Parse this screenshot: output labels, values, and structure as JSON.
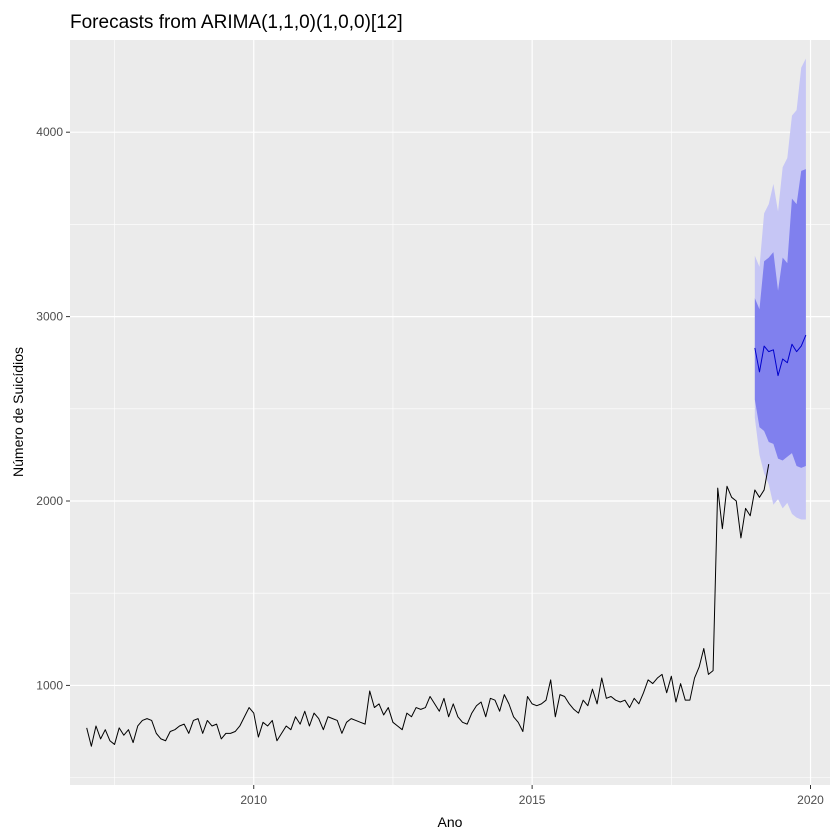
{
  "chart_data": {
    "type": "line",
    "title": "Forecasts from ARIMA(1,1,0)(1,0,0)[12]",
    "xlabel": "Ano",
    "ylabel": "Número de Suicídios",
    "xlim": [
      2006.7,
      2020.35
    ],
    "ylim": [
      460,
      4500
    ],
    "x_ticks": [
      2010,
      2015,
      2020
    ],
    "x_tick_labels": [
      "2010",
      "2015",
      "2020"
    ],
    "y_ticks": [
      1000,
      2000,
      3000,
      4000
    ],
    "y_tick_labels": [
      "1000",
      "2000",
      "3000",
      "4000"
    ],
    "grid": true,
    "legend": "none",
    "colors": {
      "panel": "#ebebeb",
      "grid_major": "#ffffff",
      "history_line": "#000000",
      "forecast_line": "#0000cc",
      "band_95": "#c6c6f5",
      "band_80": "#8080ee"
    },
    "series": [
      {
        "kind": "history",
        "start": [
          2007,
          1
        ],
        "frequency": 12,
        "values": [
          770,
          670,
          780,
          710,
          760,
          700,
          680,
          770,
          730,
          760,
          690,
          780,
          810,
          820,
          810,
          740,
          710,
          700,
          750,
          760,
          780,
          790,
          740,
          810,
          820,
          740,
          810,
          780,
          790,
          710,
          740,
          740,
          750,
          780,
          830,
          880,
          850,
          720,
          800,
          780,
          810,
          700,
          740,
          780,
          760,
          830,
          790,
          860,
          780,
          850,
          820,
          760,
          830,
          820,
          810,
          740,
          800,
          820,
          810,
          800,
          790,
          970,
          880,
          900,
          840,
          880,
          800,
          780,
          760,
          850,
          830,
          880,
          870,
          880,
          940,
          900,
          860,
          930,
          830,
          900,
          830,
          800,
          790,
          850,
          890,
          910,
          830,
          930,
          920,
          860,
          950,
          900,
          830,
          800,
          750,
          940,
          900,
          890,
          900,
          920,
          1030,
          830,
          950,
          940,
          900,
          870,
          850,
          920,
          890,
          980,
          900,
          1040,
          930,
          940,
          920,
          910,
          920,
          880,
          930,
          900,
          960,
          1030,
          1010,
          1040,
          1060,
          960,
          1050,
          910,
          1010,
          920,
          920,
          1040,
          1100,
          1200,
          1060,
          1080,
          2070,
          1850,
          2080,
          2020,
          2000,
          1800,
          1960,
          1920,
          2060,
          2020,
          2060,
          2200
        ]
      },
      {
        "kind": "forecast",
        "start": [
          2019,
          1
        ],
        "frequency": 12,
        "point": [
          2830,
          2700,
          2840,
          2810,
          2820,
          2680,
          2770,
          2750,
          2850,
          2810,
          2840,
          2900
        ],
        "lo80": [
          2550,
          2400,
          2380,
          2320,
          2310,
          2230,
          2220,
          2240,
          2260,
          2190,
          2180,
          2190
        ],
        "hi80": [
          3100,
          3040,
          3300,
          3320,
          3350,
          3140,
          3320,
          3290,
          3640,
          3610,
          3790,
          3800
        ],
        "lo95": [
          2450,
          2250,
          2150,
          2090,
          1980,
          2010,
          1960,
          1990,
          1930,
          1910,
          1900,
          1900
        ],
        "hi95": [
          3330,
          3270,
          3560,
          3610,
          3720,
          3570,
          3810,
          3860,
          4090,
          4120,
          4350,
          4400
        ]
      }
    ]
  }
}
